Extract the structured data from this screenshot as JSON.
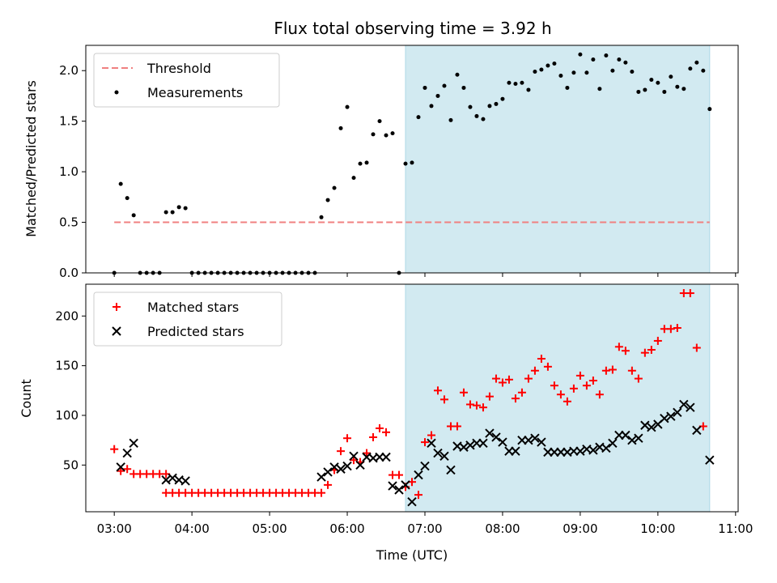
{
  "figure": {
    "title": "Flux total observing time = 3.92 h",
    "colors": {
      "shade": "#add8e6",
      "threshold": "#f08080",
      "measurement": "#000000",
      "matched": "#ff0000",
      "predicted": "#000000"
    }
  },
  "chart_data": [
    {
      "type": "scatter",
      "title": "Flux total observing time = 3.92 h",
      "xlabel": "",
      "ylabel": "Matched/Predicted stars",
      "xlim": [
        "02:38",
        "11:02"
      ],
      "ylim": [
        0,
        2.25
      ],
      "xticks": [
        "03:00",
        "04:00",
        "05:00",
        "06:00",
        "07:00",
        "08:00",
        "09:00",
        "10:00",
        "11:00"
      ],
      "yticks": [
        "0.0",
        "0.5",
        "1.0",
        "1.5",
        "2.0"
      ],
      "shaded_interval": [
        "06:45",
        "10:40"
      ],
      "legend": {
        "placement": "top-left",
        "entries": [
          "Threshold",
          "Measurements"
        ]
      },
      "threshold": {
        "name": "Threshold",
        "value": 0.5,
        "x_range": [
          "03:00",
          "10:40"
        ],
        "style": "dashed"
      },
      "series": [
        {
          "name": "Measurements",
          "points": [
            [
              "03:00",
              0.0
            ],
            [
              "03:05",
              0.88
            ],
            [
              "03:10",
              0.74
            ],
            [
              "03:15",
              0.57
            ],
            [
              "03:20",
              0.0
            ],
            [
              "03:25",
              0.0
            ],
            [
              "03:30",
              0.0
            ],
            [
              "03:35",
              0.0
            ],
            [
              "03:40",
              0.6
            ],
            [
              "03:45",
              0.6
            ],
            [
              "03:50",
              0.65
            ],
            [
              "03:55",
              0.64
            ],
            [
              "04:00",
              0.0
            ],
            [
              "04:05",
              0.0
            ],
            [
              "04:10",
              0.0
            ],
            [
              "04:15",
              0.0
            ],
            [
              "04:20",
              0.0
            ],
            [
              "04:25",
              0.0
            ],
            [
              "04:30",
              0.0
            ],
            [
              "04:35",
              0.0
            ],
            [
              "04:40",
              0.0
            ],
            [
              "04:45",
              0.0
            ],
            [
              "04:50",
              0.0
            ],
            [
              "04:55",
              0.0
            ],
            [
              "05:00",
              0.0
            ],
            [
              "05:05",
              0.0
            ],
            [
              "05:10",
              0.0
            ],
            [
              "05:15",
              0.0
            ],
            [
              "05:20",
              0.0
            ],
            [
              "05:25",
              0.0
            ],
            [
              "05:30",
              0.0
            ],
            [
              "05:35",
              0.0
            ],
            [
              "05:40",
              0.55
            ],
            [
              "05:45",
              0.72
            ],
            [
              "05:50",
              0.84
            ],
            [
              "05:55",
              1.43
            ],
            [
              "06:00",
              1.64
            ],
            [
              "06:05",
              0.94
            ],
            [
              "06:10",
              1.08
            ],
            [
              "06:15",
              1.09
            ],
            [
              "06:20",
              1.37
            ],
            [
              "06:25",
              1.5
            ],
            [
              "06:30",
              1.36
            ],
            [
              "06:35",
              1.38
            ],
            [
              "06:40",
              0.0
            ],
            [
              "06:45",
              1.08
            ],
            [
              "06:50",
              1.09
            ],
            [
              "06:55",
              1.54
            ],
            [
              "07:00",
              1.83
            ],
            [
              "07:05",
              1.65
            ],
            [
              "07:10",
              1.75
            ],
            [
              "07:15",
              1.85
            ],
            [
              "07:20",
              1.51
            ],
            [
              "07:25",
              1.96
            ],
            [
              "07:30",
              1.83
            ],
            [
              "07:35",
              1.64
            ],
            [
              "07:40",
              1.55
            ],
            [
              "07:45",
              1.52
            ],
            [
              "07:50",
              1.65
            ],
            [
              "07:55",
              1.67
            ],
            [
              "08:00",
              1.72
            ],
            [
              "08:05",
              1.88
            ],
            [
              "08:10",
              1.87
            ],
            [
              "08:15",
              1.88
            ],
            [
              "08:20",
              1.81
            ],
            [
              "08:25",
              1.99
            ],
            [
              "08:30",
              2.01
            ],
            [
              "08:35",
              2.05
            ],
            [
              "08:40",
              2.07
            ],
            [
              "08:45",
              1.95
            ],
            [
              "08:50",
              1.83
            ],
            [
              "08:55",
              1.98
            ],
            [
              "09:00",
              2.16
            ],
            [
              "09:05",
              1.98
            ],
            [
              "09:10",
              2.11
            ],
            [
              "09:15",
              1.82
            ],
            [
              "09:20",
              2.15
            ],
            [
              "09:25",
              2.0
            ],
            [
              "09:30",
              2.11
            ],
            [
              "09:35",
              2.08
            ],
            [
              "09:40",
              1.99
            ],
            [
              "09:45",
              1.79
            ],
            [
              "09:50",
              1.81
            ],
            [
              "09:55",
              1.91
            ],
            [
              "10:00",
              1.88
            ],
            [
              "10:05",
              1.79
            ],
            [
              "10:10",
              1.94
            ],
            [
              "10:15",
              1.84
            ],
            [
              "10:20",
              1.82
            ],
            [
              "10:25",
              2.02
            ],
            [
              "10:30",
              2.08
            ],
            [
              "10:35",
              2.0
            ],
            [
              "10:40",
              1.62
            ]
          ]
        }
      ],
      "grid": false
    },
    {
      "type": "scatter",
      "title": "",
      "xlabel": "Time (UTC)",
      "ylabel": "Count",
      "xlim": [
        "02:38",
        "11:02"
      ],
      "ylim": [
        3,
        232
      ],
      "xticks": [
        "03:00",
        "04:00",
        "05:00",
        "06:00",
        "07:00",
        "08:00",
        "09:00",
        "10:00",
        "11:00"
      ],
      "yticks": [
        "50",
        "100",
        "150",
        "200"
      ],
      "shaded_interval": [
        "06:45",
        "10:40"
      ],
      "legend": {
        "placement": "top-left",
        "entries": [
          "Matched stars",
          "Predicted stars"
        ]
      },
      "series": [
        {
          "name": "Matched stars",
          "marker": "+",
          "points": [
            [
              "03:00",
              66
            ],
            [
              "03:05",
              44
            ],
            [
              "03:10",
              46
            ],
            [
              "03:15",
              41
            ],
            [
              "03:20",
              41
            ],
            [
              "03:25",
              41
            ],
            [
              "03:30",
              41
            ],
            [
              "03:35",
              41
            ],
            [
              "03:40",
              41
            ],
            [
              "03:40",
              22
            ],
            [
              "03:45",
              22
            ],
            [
              "03:50",
              22
            ],
            [
              "03:55",
              22
            ],
            [
              "04:00",
              22
            ],
            [
              "04:05",
              22
            ],
            [
              "04:10",
              22
            ],
            [
              "04:15",
              22
            ],
            [
              "04:20",
              22
            ],
            [
              "04:25",
              22
            ],
            [
              "04:30",
              22
            ],
            [
              "04:35",
              22
            ],
            [
              "04:40",
              22
            ],
            [
              "04:45",
              22
            ],
            [
              "04:50",
              22
            ],
            [
              "04:55",
              22
            ],
            [
              "05:00",
              22
            ],
            [
              "05:05",
              22
            ],
            [
              "05:10",
              22
            ],
            [
              "05:15",
              22
            ],
            [
              "05:20",
              22
            ],
            [
              "05:25",
              22
            ],
            [
              "05:30",
              22
            ],
            [
              "05:35",
              22
            ],
            [
              "05:40",
              22
            ],
            [
              "05:45",
              30
            ],
            [
              "05:50",
              45
            ],
            [
              "05:55",
              64
            ],
            [
              "06:00",
              77
            ],
            [
              "06:05",
              55
            ],
            [
              "06:10",
              53
            ],
            [
              "06:15",
              62
            ],
            [
              "06:20",
              78
            ],
            [
              "06:25",
              87
            ],
            [
              "06:30",
              83
            ],
            [
              "06:35",
              40
            ],
            [
              "06:40",
              40
            ],
            [
              "06:45",
              28
            ],
            [
              "06:50",
              33
            ],
            [
              "06:55",
              20
            ],
            [
              "07:00",
              73
            ],
            [
              "07:05",
              80
            ],
            [
              "07:10",
              125
            ],
            [
              "07:15",
              116
            ],
            [
              "07:20",
              89
            ],
            [
              "07:25",
              89
            ],
            [
              "07:30",
              123
            ],
            [
              "07:35",
              111
            ],
            [
              "07:40",
              110
            ],
            [
              "07:45",
              108
            ],
            [
              "07:50",
              119
            ],
            [
              "07:55",
              137
            ],
            [
              "08:00",
              133
            ],
            [
              "08:05",
              136
            ],
            [
              "08:10",
              117
            ],
            [
              "08:15",
              123
            ],
            [
              "08:20",
              137
            ],
            [
              "08:25",
              145
            ],
            [
              "08:30",
              157
            ],
            [
              "08:35",
              149
            ],
            [
              "08:40",
              130
            ],
            [
              "08:45",
              121
            ],
            [
              "08:50",
              114
            ],
            [
              "08:55",
              127
            ],
            [
              "09:00",
              140
            ],
            [
              "09:05",
              130
            ],
            [
              "09:10",
              135
            ],
            [
              "09:15",
              121
            ],
            [
              "09:20",
              145
            ],
            [
              "09:25",
              146
            ],
            [
              "09:30",
              169
            ],
            [
              "09:35",
              165
            ],
            [
              "09:40",
              145
            ],
            [
              "09:45",
              137
            ],
            [
              "09:50",
              163
            ],
            [
              "09:55",
              166
            ],
            [
              "10:00",
              175
            ],
            [
              "10:05",
              187
            ],
            [
              "10:10",
              187
            ],
            [
              "10:15",
              188
            ],
            [
              "10:20",
              223
            ],
            [
              "10:25",
              223
            ],
            [
              "10:30",
              168
            ],
            [
              "10:35",
              89
            ]
          ]
        },
        {
          "name": "Predicted stars",
          "marker": "x",
          "points": [
            [
              "03:05",
              48
            ],
            [
              "03:10",
              62
            ],
            [
              "03:15",
              72
            ],
            [
              "03:40",
              35
            ],
            [
              "03:45",
              37
            ],
            [
              "03:50",
              35
            ],
            [
              "03:55",
              34
            ],
            [
              "05:40",
              38
            ],
            [
              "05:45",
              43
            ],
            [
              "05:50",
              48
            ],
            [
              "05:55",
              46
            ],
            [
              "06:00",
              49
            ],
            [
              "06:05",
              59
            ],
            [
              "06:10",
              50
            ],
            [
              "06:15",
              58
            ],
            [
              "06:20",
              57
            ],
            [
              "06:25",
              58
            ],
            [
              "06:30",
              58
            ],
            [
              "06:35",
              29
            ],
            [
              "06:40",
              25
            ],
            [
              "06:45",
              30
            ],
            [
              "06:50",
              13
            ],
            [
              "06:55",
              40
            ],
            [
              "07:00",
              49
            ],
            [
              "07:05",
              72
            ],
            [
              "07:10",
              62
            ],
            [
              "07:15",
              59
            ],
            [
              "07:20",
              45
            ],
            [
              "07:25",
              69
            ],
            [
              "07:30",
              68
            ],
            [
              "07:35",
              70
            ],
            [
              "07:40",
              72
            ],
            [
              "07:45",
              72
            ],
            [
              "07:50",
              82
            ],
            [
              "07:55",
              78
            ],
            [
              "08:00",
              73
            ],
            [
              "08:05",
              64
            ],
            [
              "08:10",
              64
            ],
            [
              "08:15",
              75
            ],
            [
              "08:20",
              75
            ],
            [
              "08:25",
              77
            ],
            [
              "08:30",
              73
            ],
            [
              "08:35",
              63
            ],
            [
              "08:40",
              63
            ],
            [
              "08:45",
              63
            ],
            [
              "08:50",
              63
            ],
            [
              "08:55",
              64
            ],
            [
              "09:00",
              64
            ],
            [
              "09:05",
              66
            ],
            [
              "09:10",
              65
            ],
            [
              "09:15",
              68
            ],
            [
              "09:20",
              67
            ],
            [
              "09:25",
              72
            ],
            [
              "09:30",
              80
            ],
            [
              "09:35",
              80
            ],
            [
              "09:40",
              75
            ],
            [
              "09:45",
              77
            ],
            [
              "09:50",
              90
            ],
            [
              "09:55",
              88
            ],
            [
              "10:00",
              91
            ],
            [
              "10:05",
              97
            ],
            [
              "10:10",
              99
            ],
            [
              "10:15",
              103
            ],
            [
              "10:20",
              111
            ],
            [
              "10:25",
              108
            ],
            [
              "10:30",
              85
            ],
            [
              "10:40",
              55
            ]
          ]
        }
      ],
      "grid": false
    }
  ]
}
